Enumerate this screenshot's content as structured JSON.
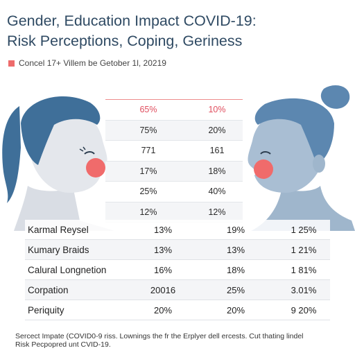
{
  "title_line1": "Gender, Education Impact COVID-19:",
  "title_line2": "Risk Perceptions, Coping, Geriness",
  "subtitle": "Concel 17+ Villem be Getober 1l, 20219",
  "accent_color": "#ee6b6b",
  "top_table": {
    "header": [
      "65%",
      "10%"
    ],
    "rows": [
      [
        "75%",
        "20%"
      ],
      [
        "771",
        "161"
      ],
      [
        "17%",
        "18%"
      ],
      [
        "25%",
        "40%"
      ],
      [
        "12%",
        "12%"
      ]
    ]
  },
  "bottom_table": {
    "rows": [
      {
        "label": "Karmal Reysel",
        "v1": "13%",
        "v2": "19%",
        "v3": "1 25%"
      },
      {
        "label": "Kumary Braids",
        "v1": "13%",
        "v2": "13%",
        "v3": "1 21%"
      },
      {
        "label": "Calural Longnetion",
        "v1": "16%",
        "v2": "18%",
        "v3": "1 81%"
      },
      {
        "label": "Corpation",
        "v1": "20016",
        "v2": "25%",
        "v3": "3.01%"
      },
      {
        "label": "Periquity",
        "v1": "20%",
        "v2": "20%",
        "v3": "9 20%"
      }
    ]
  },
  "footnote_line1": "Sercect Impate (COVID0-9 riss. Lownings the fr the Erplyer dell ercests. Cut thating lindel",
  "footnote_line2": "Risk Pecpopred unt CVID-19."
}
